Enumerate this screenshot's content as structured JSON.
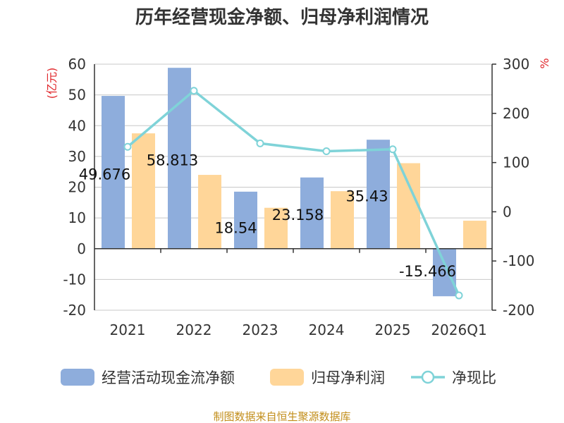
{
  "source_note": "制图数据来自恒生聚源数据库",
  "colors": {
    "cashflow": "#8eaddc",
    "netprofit": "#ffd699",
    "ratio": "#7fd3d8",
    "axis": "#333333",
    "grid": "#c8c8c8",
    "unit": "#e0262a"
  },
  "chart_data": {
    "type": "bar",
    "title": "历年经营现金净额、归母净利润情况",
    "categories": [
      "2021",
      "2022",
      "2023",
      "2024",
      "2025",
      "2026Q1"
    ],
    "left_axis": {
      "label": "(亿元)",
      "range": [
        -20,
        60
      ],
      "ticks": [
        -20,
        -10,
        0,
        10,
        20,
        30,
        40,
        50,
        60
      ]
    },
    "right_axis": {
      "label": "%",
      "range": [
        -200,
        300
      ],
      "ticks": [
        -200,
        -100,
        0,
        100,
        200,
        300
      ]
    },
    "series": [
      {
        "name": "经营活动现金流净额",
        "type": "bar",
        "axis": "left",
        "values": [
          49.676,
          58.813,
          18.54,
          23.158,
          35.43,
          -15.466
        ],
        "labels": [
          "49.676",
          "58.813",
          "18.54",
          "23.158",
          "35.43",
          "-15.466"
        ]
      },
      {
        "name": "归母净利润",
        "type": "bar",
        "axis": "left",
        "values": [
          37.5,
          24.0,
          13.3,
          18.7,
          27.8,
          9.1
        ]
      },
      {
        "name": "净现比",
        "type": "line",
        "axis": "right",
        "values": [
          132,
          246,
          139,
          123,
          127,
          -170
        ]
      }
    ],
    "legend": "bottom",
    "grid": true
  }
}
